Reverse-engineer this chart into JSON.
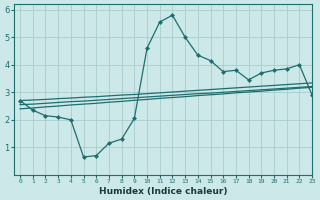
{
  "xlabel": "Humidex (Indice chaleur)",
  "bg_color": "#cce8e8",
  "line_color": "#1e6e6e",
  "grid_color": "#aacccc",
  "xlim": [
    -0.5,
    23
  ],
  "ylim": [
    0,
    6.2
  ],
  "xticks": [
    0,
    1,
    2,
    3,
    4,
    5,
    6,
    7,
    8,
    9,
    10,
    11,
    12,
    13,
    14,
    15,
    16,
    17,
    18,
    19,
    20,
    21,
    22,
    23
  ],
  "yticks": [
    1,
    2,
    3,
    4,
    5,
    6
  ],
  "x": [
    0,
    1,
    2,
    3,
    4,
    5,
    6,
    7,
    8,
    9,
    10,
    11,
    12,
    13,
    14,
    15,
    16,
    17,
    18,
    19,
    20,
    21,
    22,
    23
  ],
  "line1": [
    2.7,
    2.35,
    2.15,
    2.1,
    2.0,
    0.65,
    0.7,
    1.15,
    1.3,
    2.05,
    4.6,
    5.55,
    5.8,
    5.0,
    4.35,
    4.15,
    3.75,
    3.8,
    3.45,
    3.7,
    3.8,
    3.85,
    4.0,
    2.9
  ],
  "line2": [
    2.7,
    2.72,
    2.74,
    2.77,
    2.79,
    2.82,
    2.84,
    2.87,
    2.9,
    2.92,
    2.95,
    2.98,
    3.01,
    3.04,
    3.07,
    3.1,
    3.13,
    3.16,
    3.19,
    3.22,
    3.25,
    3.28,
    3.31,
    3.34
  ],
  "line3": [
    2.55,
    2.57,
    2.6,
    2.63,
    2.66,
    2.68,
    2.71,
    2.74,
    2.77,
    2.8,
    2.83,
    2.86,
    2.89,
    2.92,
    2.95,
    2.97,
    3.0,
    3.03,
    3.06,
    3.09,
    3.12,
    3.15,
    3.18,
    3.21
  ],
  "line4": [
    2.4,
    2.43,
    2.47,
    2.5,
    2.54,
    2.57,
    2.6,
    2.64,
    2.67,
    2.71,
    2.74,
    2.78,
    2.81,
    2.84,
    2.88,
    2.91,
    2.94,
    2.98,
    3.01,
    3.04,
    3.08,
    3.11,
    3.15,
    3.18
  ]
}
